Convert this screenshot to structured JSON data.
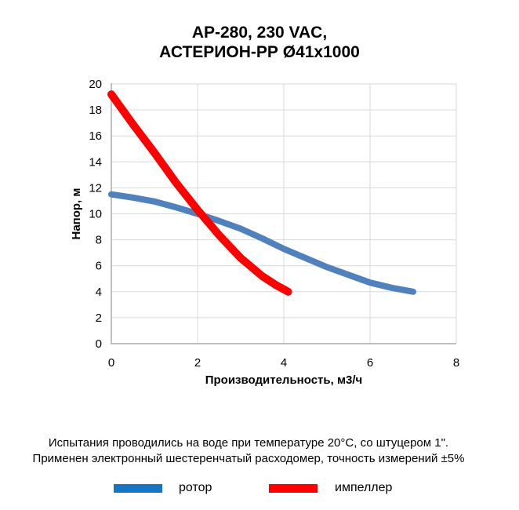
{
  "title": {
    "line1": "АР-280, 230 VAC,",
    "line2": "АСТЕРИОН-РР Ø41х1000"
  },
  "chart_data": {
    "type": "line",
    "title": "АР-280, 230 VAC, АСТЕРИОН-РР Ø41х1000",
    "xlabel": "Производительность, м3/ч",
    "ylabel": "Напор, м",
    "xlim": [
      0,
      8
    ],
    "ylim": [
      0,
      20
    ],
    "xticks": [
      0,
      2,
      4,
      6,
      8
    ],
    "yticks": [
      0,
      2,
      4,
      6,
      8,
      10,
      12,
      14,
      16,
      18,
      20
    ],
    "grid": true,
    "grid_color": "#D9D9D9",
    "axis_color": "#BFBFBF",
    "legend_position": "bottom",
    "series": [
      {
        "name": "ротор",
        "color": "#4F81BD",
        "width": 8,
        "points": [
          [
            0,
            11.5
          ],
          [
            0.5,
            11.25
          ],
          [
            1,
            10.95
          ],
          [
            1.5,
            10.5
          ],
          [
            2,
            10
          ],
          [
            2.5,
            9.45
          ],
          [
            3,
            8.85
          ],
          [
            3.5,
            8.1
          ],
          [
            4,
            7.3
          ],
          [
            4.5,
            6.6
          ],
          [
            5,
            5.9
          ],
          [
            5.5,
            5.3
          ],
          [
            6,
            4.7
          ],
          [
            6.5,
            4.3
          ],
          [
            7,
            4
          ]
        ]
      },
      {
        "name": "импеллер",
        "color": "#FE0000",
        "width": 10,
        "points": [
          [
            0,
            19.2
          ],
          [
            0.5,
            16.9
          ],
          [
            1,
            14.7
          ],
          [
            1.5,
            12.4
          ],
          [
            2,
            10.3
          ],
          [
            2.5,
            8.35
          ],
          [
            3,
            6.6
          ],
          [
            3.5,
            5.2
          ],
          [
            3.8,
            4.55
          ],
          [
            4.1,
            4
          ]
        ]
      }
    ]
  },
  "footnote": {
    "line1": "Испытания проводились на воде при температуре 20°С, со штуцером 1\".",
    "line2": "Применен электронный шестеренчатый расходомер, точность измерений ±5%"
  },
  "legend": {
    "items": [
      {
        "label": "ротор",
        "color": "#1776C4"
      },
      {
        "label": "импеллер",
        "color": "#FE0000"
      }
    ]
  }
}
